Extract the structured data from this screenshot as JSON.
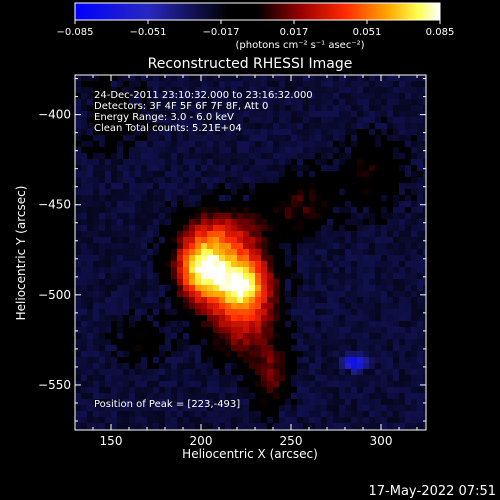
{
  "colorbar": {
    "ticks": [
      {
        "value": -0.085,
        "label": "−0.085"
      },
      {
        "value": -0.051,
        "label": "−0.051"
      },
      {
        "value": -0.017,
        "label": "−0.017"
      },
      {
        "value": 0.017,
        "label": "0.017"
      },
      {
        "value": 0.051,
        "label": "0.051"
      },
      {
        "value": 0.085,
        "label": "0.085"
      }
    ],
    "range": [
      -0.085,
      0.085
    ],
    "unit_label": "(photons cm⁻² s⁻¹ asec⁻²)",
    "colormap_name": "rhessi-blue-black-red-yellow-white"
  },
  "chart_data": {
    "type": "heatmap",
    "title": "Reconstructed RHESSI Image",
    "xlabel": "Heliocentric X (arcsec)",
    "ylabel": "Heliocentric Y (arcsec)",
    "xlim": [
      130,
      325
    ],
    "ylim": [
      -575,
      -378
    ],
    "xticks": [
      150,
      200,
      250,
      300
    ],
    "yticks": [
      -400,
      -450,
      -500,
      -550
    ],
    "annotations": [
      "24-Dec-2011 23:10:32.000 to 23:16:32.000",
      "Detectors: 3F 4F 5F 6F 7F 8F, Att 0",
      "Energy Range: 3.0 - 6.0 keV",
      "Clean      Total counts: 5.21E+04"
    ],
    "peak_label": "Position of Peak = [223,-493]",
    "peak": [
      223,
      -493
    ],
    "sources": [
      {
        "x": 200,
        "y": -487,
        "sigma_x": 10,
        "sigma_y": 12,
        "peak": 0.085
      },
      {
        "x": 223,
        "y": -493,
        "sigma_x": 11,
        "sigma_y": 11,
        "peak": 0.085
      },
      {
        "x": 212,
        "y": -468,
        "sigma_x": 16,
        "sigma_y": 12,
        "peak": 0.05
      },
      {
        "x": 222,
        "y": -515,
        "sigma_x": 14,
        "sigma_y": 14,
        "peak": 0.045
      },
      {
        "x": 238,
        "y": -545,
        "sigma_x": 8,
        "sigma_y": 14,
        "peak": 0.032
      },
      {
        "x": 255,
        "y": -450,
        "sigma_x": 14,
        "sigma_y": 12,
        "peak": 0.026
      },
      {
        "x": 295,
        "y": -432,
        "sigma_x": 14,
        "sigma_y": 16,
        "peak": 0.02
      },
      {
        "x": 168,
        "y": -525,
        "sigma_x": 10,
        "sigma_y": 10,
        "peak": 0.02
      },
      {
        "x": 150,
        "y": -400,
        "sigma_x": 14,
        "sigma_y": 14,
        "peak": 0.017
      }
    ],
    "background_level": -0.02,
    "negative_spots": [
      {
        "x": 285,
        "y": -538,
        "sigma_x": 5,
        "sigma_y": 3,
        "peak": -0.06
      }
    ]
  },
  "footer": {
    "timestamp": "17‑May‑2022 07:51"
  }
}
